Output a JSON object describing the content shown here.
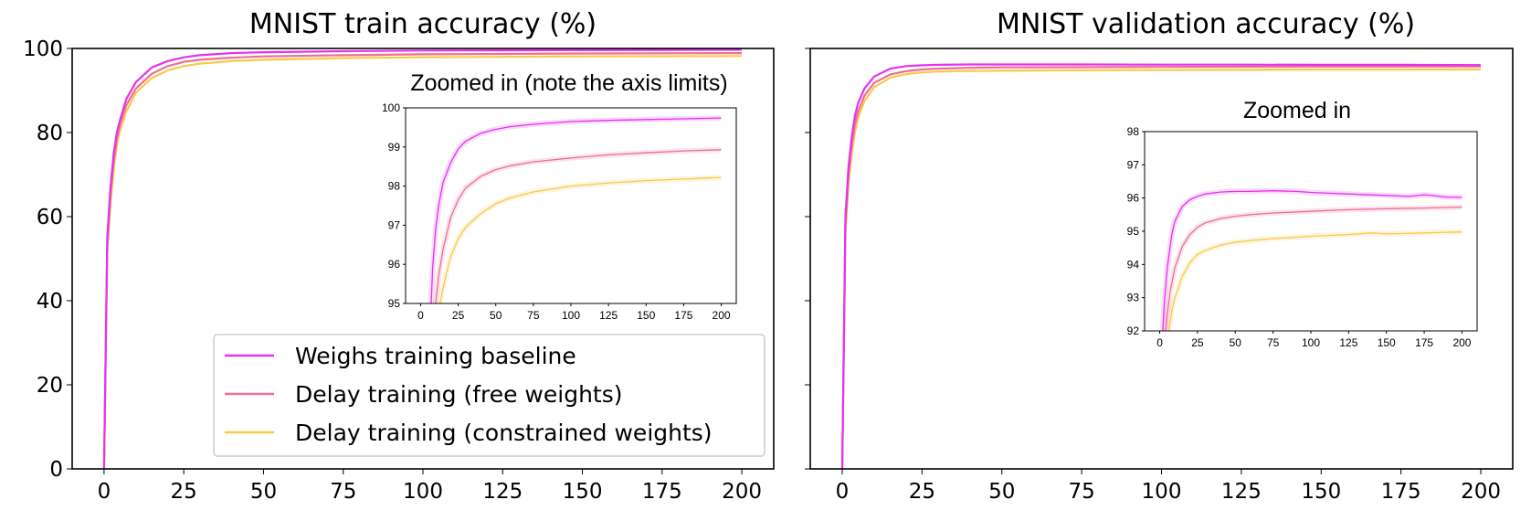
{
  "colors": {
    "baseline": "#e532f0",
    "free": "#ec6f94",
    "constrained": "#fbc94b"
  },
  "chart_data": [
    {
      "type": "line",
      "id": "train",
      "title": "MNIST train accuracy (%)",
      "xlabel": "",
      "ylabel": "",
      "xlim": [
        -10,
        210
      ],
      "ylim": [
        0,
        100
      ],
      "xticks": [
        0,
        25,
        50,
        75,
        100,
        125,
        150,
        175,
        200
      ],
      "yticks": [
        0,
        20,
        40,
        60,
        80,
        100
      ],
      "grid": false,
      "legend_position": "lower-right",
      "series": [
        {
          "name": "Weighs training baseline",
          "color_key": "baseline",
          "x": [
            0,
            1,
            2,
            3,
            4,
            5,
            7,
            10,
            15,
            20,
            25,
            30,
            40,
            50,
            75,
            100,
            125,
            150,
            175,
            200
          ],
          "y": [
            0,
            55,
            67,
            75,
            80,
            83,
            88,
            92,
            95.5,
            97,
            97.9,
            98.4,
            98.9,
            99.1,
            99.35,
            99.5,
            99.55,
            99.6,
            99.65,
            99.7
          ]
        },
        {
          "name": "Delay training (free weights)",
          "color_key": "free",
          "x": [
            0,
            1,
            2,
            3,
            4,
            5,
            7,
            10,
            15,
            20,
            25,
            30,
            40,
            50,
            75,
            100,
            125,
            150,
            175,
            200
          ],
          "y": [
            0,
            53,
            65,
            73,
            78.5,
            82,
            86.5,
            90.5,
            94,
            95.8,
            96.8,
            97.3,
            97.8,
            98.1,
            98.4,
            98.6,
            98.7,
            98.8,
            98.85,
            98.9
          ]
        },
        {
          "name": "Delay training (constrained weights)",
          "color_key": "constrained",
          "x": [
            0,
            1,
            2,
            3,
            4,
            5,
            7,
            10,
            15,
            20,
            25,
            30,
            40,
            50,
            75,
            100,
            125,
            150,
            175,
            200
          ],
          "y": [
            0,
            51,
            63,
            71,
            77,
            80.5,
            85,
            89.5,
            93,
            94.8,
            95.8,
            96.4,
            97,
            97.3,
            97.7,
            97.9,
            98,
            98.1,
            98.15,
            98.2
          ]
        }
      ]
    },
    {
      "type": "line",
      "id": "train_inset",
      "title": "Zoomed in (note the axis limits)",
      "xlim": [
        -10,
        210
      ],
      "ylim": [
        95,
        100
      ],
      "xticks": [
        0,
        25,
        50,
        75,
        100,
        125,
        150,
        175,
        200
      ],
      "yticks": [
        95,
        96,
        97,
        98,
        99,
        100
      ],
      "series": [
        {
          "name": "Weighs training baseline",
          "color_key": "baseline",
          "x": [
            7,
            8,
            10,
            12,
            15,
            20,
            25,
            30,
            40,
            50,
            60,
            75,
            100,
            125,
            150,
            175,
            200
          ],
          "y": [
            95,
            95.9,
            96.9,
            97.5,
            98.1,
            98.6,
            98.95,
            99.15,
            99.35,
            99.45,
            99.52,
            99.58,
            99.65,
            99.68,
            99.7,
            99.72,
            99.74
          ]
        },
        {
          "name": "Delay training (free weights)",
          "color_key": "free",
          "x": [
            10,
            12,
            15,
            20,
            25,
            30,
            40,
            50,
            60,
            75,
            100,
            125,
            150,
            175,
            200
          ],
          "y": [
            95,
            95.7,
            96.4,
            97.2,
            97.65,
            97.95,
            98.25,
            98.42,
            98.52,
            98.62,
            98.72,
            98.8,
            98.85,
            98.9,
            98.93
          ]
        },
        {
          "name": "Delay training (constrained weights)",
          "color_key": "constrained",
          "x": [
            13,
            15,
            18,
            20,
            25,
            30,
            40,
            50,
            60,
            75,
            100,
            125,
            150,
            175,
            200
          ],
          "y": [
            95,
            95.4,
            95.9,
            96.2,
            96.65,
            96.95,
            97.3,
            97.55,
            97.7,
            97.85,
            98.0,
            98.08,
            98.14,
            98.18,
            98.22
          ]
        }
      ]
    },
    {
      "type": "line",
      "id": "val",
      "title": "MNIST validation accuracy (%)",
      "xlabel": "",
      "ylabel": "",
      "xlim": [
        -10,
        210
      ],
      "ylim": [
        0,
        100
      ],
      "xticks": [
        0,
        25,
        50,
        75,
        100,
        125,
        150,
        175,
        200
      ],
      "yticks": [
        0,
        20,
        40,
        60,
        80,
        100
      ],
      "grid": false,
      "series": [
        {
          "name": "Weighs training baseline",
          "color_key": "baseline",
          "x": [
            0,
            1,
            2,
            3,
            4,
            5,
            7,
            10,
            15,
            20,
            25,
            30,
            40,
            50,
            75,
            100,
            125,
            150,
            175,
            200
          ],
          "y": [
            0,
            60,
            72,
            79,
            84,
            87,
            90.5,
            93.3,
            95.2,
            95.8,
            96.0,
            96.1,
            96.2,
            96.2,
            96.2,
            96.15,
            96.15,
            96.1,
            96.1,
            96.05
          ]
        },
        {
          "name": "Delay training (free weights)",
          "color_key": "free",
          "x": [
            0,
            1,
            2,
            3,
            4,
            5,
            7,
            10,
            15,
            20,
            25,
            30,
            40,
            50,
            75,
            100,
            125,
            150,
            175,
            200
          ],
          "y": [
            0,
            58,
            70,
            77,
            82,
            85,
            88.8,
            91.8,
            93.8,
            94.6,
            95.0,
            95.2,
            95.4,
            95.5,
            95.55,
            95.6,
            95.65,
            95.7,
            95.7,
            95.75
          ]
        },
        {
          "name": "Delay training (constrained weights)",
          "color_key": "constrained",
          "x": [
            0,
            1,
            2,
            3,
            4,
            5,
            7,
            10,
            15,
            20,
            25,
            30,
            40,
            50,
            75,
            100,
            125,
            150,
            175,
            200
          ],
          "y": [
            0,
            56,
            68,
            75,
            80,
            83.5,
            87.5,
            90.8,
            93,
            93.9,
            94.3,
            94.5,
            94.65,
            94.7,
            94.8,
            94.85,
            94.9,
            94.95,
            94.95,
            95.0
          ]
        }
      ]
    },
    {
      "type": "line",
      "id": "val_inset",
      "title": "Zoomed in",
      "xlim": [
        -10,
        210
      ],
      "ylim": [
        92,
        98
      ],
      "xticks": [
        0,
        25,
        50,
        75,
        100,
        125,
        150,
        175,
        200
      ],
      "yticks": [
        92,
        93,
        94,
        95,
        96,
        97,
        98
      ],
      "series": [
        {
          "name": "Weighs training baseline",
          "color_key": "baseline",
          "x": [
            2,
            3,
            5,
            8,
            10,
            15,
            20,
            25,
            30,
            40,
            50,
            60,
            75,
            90,
            100,
            125,
            150,
            165,
            175,
            190,
            200
          ],
          "y": [
            92,
            92.8,
            93.9,
            94.9,
            95.3,
            95.75,
            95.95,
            96.05,
            96.12,
            96.18,
            96.2,
            96.2,
            96.22,
            96.2,
            96.17,
            96.12,
            96.08,
            96.05,
            96.1,
            96.03,
            96.02
          ]
        },
        {
          "name": "Delay training (free weights)",
          "color_key": "free",
          "x": [
            4,
            5,
            7,
            10,
            15,
            20,
            25,
            30,
            40,
            50,
            60,
            75,
            100,
            125,
            150,
            175,
            200
          ],
          "y": [
            92,
            92.5,
            93.2,
            93.9,
            94.55,
            94.9,
            95.12,
            95.25,
            95.38,
            95.45,
            95.5,
            95.55,
            95.6,
            95.65,
            95.68,
            95.7,
            95.73
          ]
        },
        {
          "name": "Delay training (constrained weights)",
          "color_key": "constrained",
          "x": [
            6,
            8,
            10,
            15,
            20,
            25,
            30,
            40,
            50,
            60,
            75,
            100,
            125,
            140,
            150,
            175,
            200
          ],
          "y": [
            92,
            92.6,
            93.0,
            93.65,
            94.05,
            94.3,
            94.42,
            94.58,
            94.67,
            94.72,
            94.78,
            94.85,
            94.9,
            94.95,
            94.92,
            94.95,
            94.98
          ]
        }
      ]
    }
  ]
}
